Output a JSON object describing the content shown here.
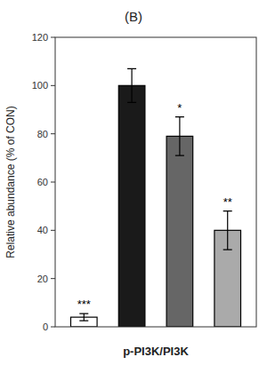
{
  "chart_data": {
    "type": "bar",
    "title": "(B)",
    "xlabel": "p-PI3K/PI3K",
    "ylabel": "Relative abundance (% of CON)",
    "categories": [
      null,
      null,
      null,
      null
    ],
    "values": [
      4,
      100,
      79,
      40
    ],
    "errors": [
      1.5,
      7,
      8,
      8
    ],
    "annotations": [
      "***",
      null,
      "*",
      "**"
    ],
    "colors": [
      "#ffffff",
      "#1a1a1a",
      "#666666",
      "#aaaaaa"
    ],
    "ylim": [
      0,
      120
    ],
    "yticks": [
      0,
      20,
      40,
      60,
      80,
      100,
      120
    ],
    "grid": false,
    "tick_labels": "y"
  }
}
